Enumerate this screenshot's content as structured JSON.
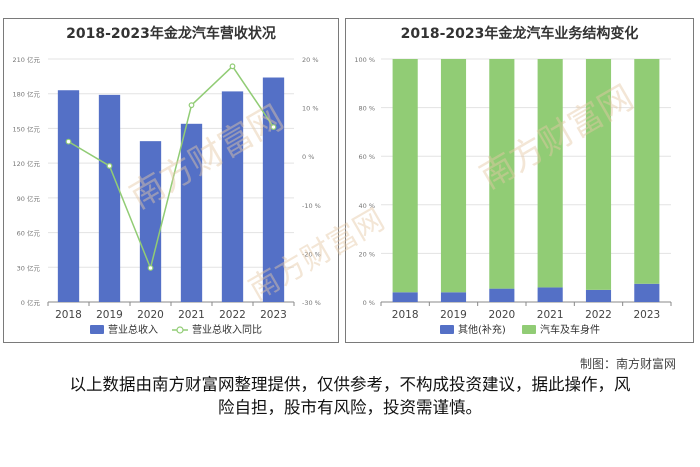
{
  "watermark": "南方财富网",
  "charts": {
    "left": {
      "title": "2018-2023年金龙汽车营收状况"
    },
    "right": {
      "title": "2018-2023年金龙汽车业务结构变化"
    }
  },
  "source": "制图：南方财富网",
  "disclaimer_line1": "以上数据由南方财富网整理提供，仅供参考，不构成投资建议，据此操作，风",
  "disclaimer_line2": "险自担，股市有风险，投资需谨慎。",
  "colors": {
    "bar": "#5470c6",
    "line": "#91cc75",
    "green": "#91cc75",
    "blue": "#5470c6"
  },
  "chart_data": [
    {
      "type": "bar",
      "title": "2018-2023年金龙汽车营收状况",
      "categories": [
        "2018",
        "2019",
        "2020",
        "2021",
        "2022",
        "2023"
      ],
      "series": [
        {
          "name": "营业总收入",
          "type": "bar",
          "axis": "left",
          "values": [
            183,
            179,
            139,
            154,
            182,
            194
          ]
        },
        {
          "name": "营业总收入同比",
          "type": "line",
          "axis": "right",
          "values": [
            3,
            -2,
            -23,
            10.5,
            18.5,
            6
          ]
        }
      ],
      "y_left": {
        "ylim": [
          0,
          210
        ],
        "ticks": [
          0,
          30,
          60,
          90,
          120,
          150,
          180,
          210
        ],
        "unit": "亿元"
      },
      "y_right": {
        "ylim": [
          -30,
          20
        ],
        "ticks": [
          -30,
          -20,
          -10,
          0,
          10,
          20
        ],
        "unit": "%"
      },
      "legend": "bottom",
      "grid": true
    },
    {
      "type": "bar",
      "stacked": true,
      "title": "2018-2023年金龙汽车业务结构变化",
      "categories": [
        "2018",
        "2019",
        "2020",
        "2021",
        "2022",
        "2023"
      ],
      "series": [
        {
          "name": "其他(补充)",
          "values": [
            4,
            4,
            5.5,
            6,
            5,
            7.5
          ]
        },
        {
          "name": "汽车及车身件",
          "values": [
            96,
            96,
            94.5,
            94,
            95,
            92.5
          ]
        }
      ],
      "y": {
        "ylim": [
          0,
          100
        ],
        "ticks": [
          0,
          20,
          40,
          60,
          80,
          100
        ],
        "unit": "%"
      },
      "legend": "bottom",
      "grid": true
    }
  ]
}
